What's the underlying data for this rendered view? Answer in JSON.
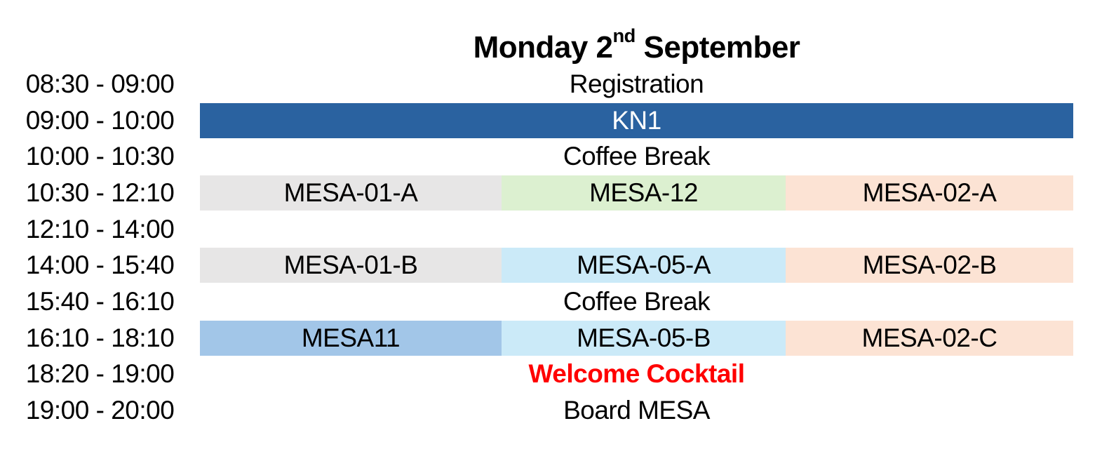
{
  "header": {
    "title_day": "Monday 2",
    "title_ordinal": "nd",
    "title_month": " September"
  },
  "colors": {
    "page_background": "#FFFFFF",
    "keynote_blue": "#2A62A0",
    "keynote_text": "#FFFFFF",
    "session_gray": "#E7E6E6",
    "session_green": "#DCF0D0",
    "session_cyan": "#CBEAF8",
    "session_peach": "#FCE3D4",
    "session_medium_blue": "#A2C6E8",
    "highlight_red": "#FF0000",
    "default_text": "#000000"
  },
  "schedule": {
    "rows": [
      {
        "time": "08:30 - 09:00",
        "cells": [
          {
            "label": "Registration",
            "span": 3,
            "bg": "transparent",
            "fg": "#000000",
            "bold": false
          }
        ]
      },
      {
        "time": "09:00 - 10:00",
        "cells": [
          {
            "label": "KN1",
            "span": 3,
            "bg": "#2A62A0",
            "fg": "#FFFFFF",
            "bold": false
          }
        ]
      },
      {
        "time": "10:00 - 10:30",
        "cells": [
          {
            "label": "Coffee Break",
            "span": 3,
            "bg": "transparent",
            "fg": "#000000",
            "bold": false
          }
        ]
      },
      {
        "time": "10:30 - 12:10",
        "cells": [
          {
            "label": "MESA-01-A",
            "span": 1,
            "bg": "#E7E6E6",
            "fg": "#000000",
            "bold": false
          },
          {
            "label": "MESA-12",
            "span": 1,
            "bg": "#DCF0D0",
            "fg": "#000000",
            "bold": false
          },
          {
            "label": "MESA-02-A",
            "span": 1,
            "bg": "#FCE3D4",
            "fg": "#000000",
            "bold": false
          }
        ]
      },
      {
        "time": "12:10 - 14:00",
        "cells": []
      },
      {
        "time": "14:00 - 15:40",
        "cells": [
          {
            "label": "MESA-01-B",
            "span": 1,
            "bg": "#E7E6E6",
            "fg": "#000000",
            "bold": false
          },
          {
            "label": "MESA-05-A",
            "span": 1,
            "bg": "#CBEAF8",
            "fg": "#000000",
            "bold": false
          },
          {
            "label": "MESA-02-B",
            "span": 1,
            "bg": "#FCE3D4",
            "fg": "#000000",
            "bold": false
          }
        ]
      },
      {
        "time": "15:40 - 16:10",
        "cells": [
          {
            "label": "Coffee Break",
            "span": 3,
            "bg": "transparent",
            "fg": "#000000",
            "bold": false
          }
        ]
      },
      {
        "time": "16:10 - 18:10",
        "cells": [
          {
            "label": "MESA11",
            "span": 1,
            "bg": "#A2C6E8",
            "fg": "#000000",
            "bold": false
          },
          {
            "label": "MESA-05-B",
            "span": 1,
            "bg": "#CBEAF8",
            "fg": "#000000",
            "bold": false
          },
          {
            "label": "MESA-02-C",
            "span": 1,
            "bg": "#FCE3D4",
            "fg": "#000000",
            "bold": false
          }
        ]
      },
      {
        "time": "18:20 - 19:00",
        "cells": [
          {
            "label": "Welcome Cocktail",
            "span": 3,
            "bg": "transparent",
            "fg": "#FF0000",
            "bold": true
          }
        ]
      },
      {
        "time": "19:00 - 20:00",
        "cells": [
          {
            "label": "Board MESA",
            "span": 3,
            "bg": "transparent",
            "fg": "#000000",
            "bold": false
          }
        ]
      }
    ]
  }
}
